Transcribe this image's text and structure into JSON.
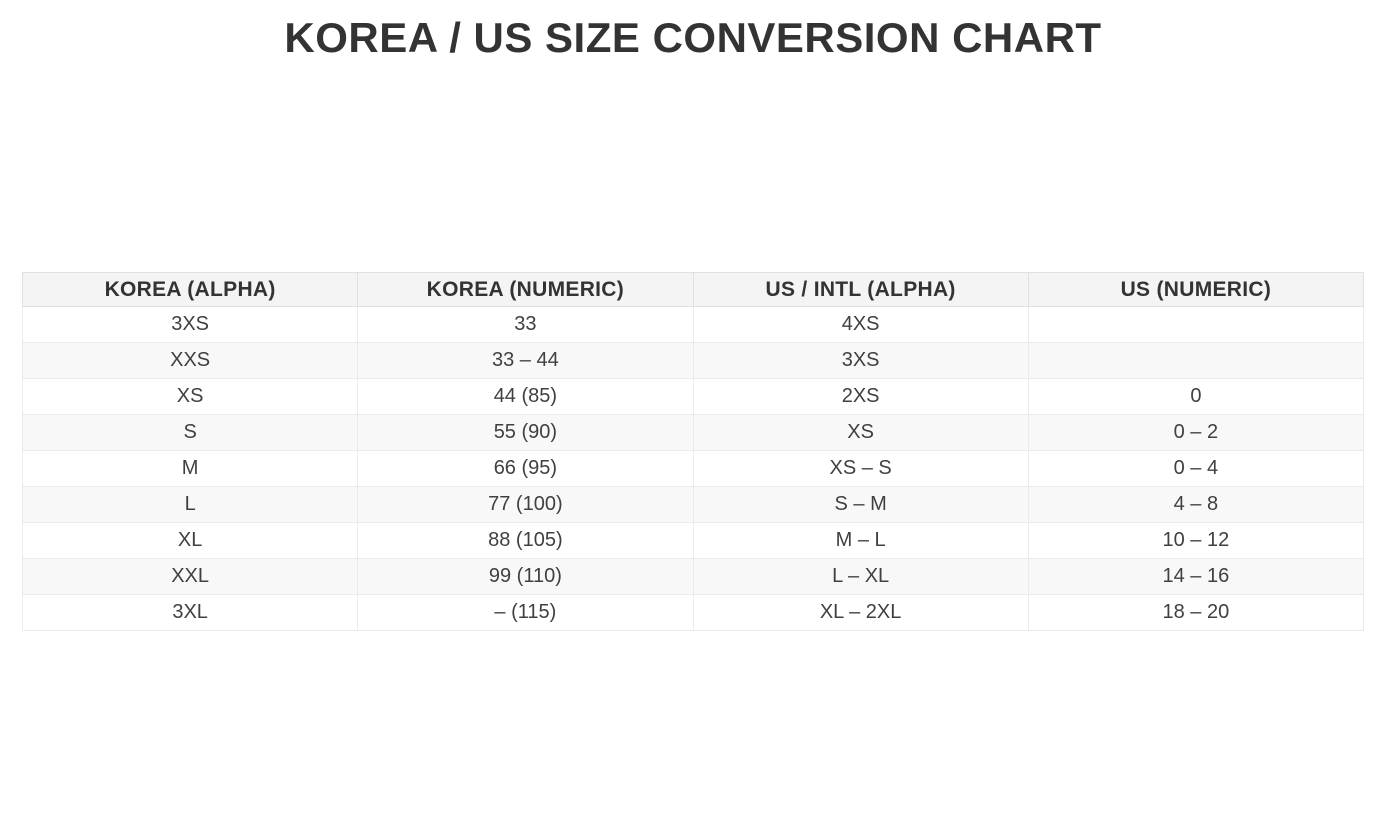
{
  "page": {
    "title": "KOREA / US SIZE CONVERSION CHART"
  },
  "table": {
    "columns": [
      "KOREA (ALPHA)",
      "KOREA (NUMERIC)",
      "US / INTL (ALPHA)",
      "US (NUMERIC)"
    ],
    "rows": [
      [
        "3XS",
        "33",
        "4XS",
        ""
      ],
      [
        "XXS",
        "33 – 44",
        "3XS",
        ""
      ],
      [
        "XS",
        "44 (85)",
        "2XS",
        "0"
      ],
      [
        "S",
        "55 (90)",
        "XS",
        "0 – 2"
      ],
      [
        "M",
        "66 (95)",
        "XS – S",
        "0 – 4"
      ],
      [
        "L",
        "77 (100)",
        "S – M",
        "4 – 8"
      ],
      [
        "XL",
        "88 (105)",
        "M – L",
        "10 – 12"
      ],
      [
        "XXL",
        "99 (110)",
        "L – XL",
        "14 – 16"
      ],
      [
        "3XL",
        "– (115)",
        "XL – 2XL",
        "18 – 20"
      ]
    ]
  },
  "colors": {
    "title_text": "#333333",
    "header_bg": "#f4f4f4",
    "header_text": "#333333",
    "cell_text": "#404040",
    "stripe_bg": "#f8f8f8",
    "border": "#e0e0e0",
    "border_light": "#ebebeb"
  },
  "chart_data": {
    "type": "table",
    "title": "KOREA / US SIZE CONVERSION CHART",
    "columns": [
      "KOREA (ALPHA)",
      "KOREA (NUMERIC)",
      "US / INTL (ALPHA)",
      "US (NUMERIC)"
    ],
    "rows": [
      [
        "3XS",
        "33",
        "4XS",
        ""
      ],
      [
        "XXS",
        "33 – 44",
        "3XS",
        ""
      ],
      [
        "XS",
        "44 (85)",
        "2XS",
        "0"
      ],
      [
        "S",
        "55 (90)",
        "XS",
        "0 – 2"
      ],
      [
        "M",
        "66 (95)",
        "XS – S",
        "0 – 4"
      ],
      [
        "L",
        "77 (100)",
        "S – M",
        "4 – 8"
      ],
      [
        "XL",
        "88 (105)",
        "M – L",
        "10 – 12"
      ],
      [
        "XXL",
        "99 (110)",
        "L – XL",
        "14 – 16"
      ],
      [
        "3XL",
        "– (115)",
        "XL – 2XL",
        "18 – 20"
      ]
    ],
    "layout_hints": {
      "header_row_shaded": true,
      "zebra_striping": "even rows shaded",
      "column_alignment": "center",
      "columns_equal_width": true
    }
  }
}
